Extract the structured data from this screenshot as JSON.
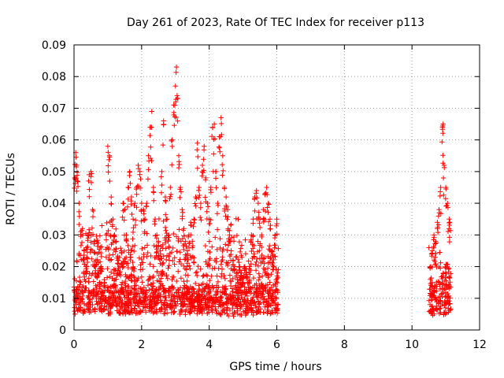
{
  "chart_data": {
    "type": "scatter",
    "title": "Day 261 of 2023, Rate Of TEC Index for receiver p113",
    "xlabel": "GPS time / hours",
    "ylabel": "ROTI / TECUs",
    "xlim": [
      0,
      12
    ],
    "ylim": [
      0,
      0.09
    ],
    "x_ticks": [
      0,
      2,
      4,
      6,
      8,
      10,
      12
    ],
    "y_ticks": [
      0,
      0.01,
      0.02,
      0.03,
      0.04,
      0.05,
      0.06,
      0.07,
      0.08,
      0.09
    ],
    "x_tick_labels": [
      "0",
      "2",
      "4",
      "6",
      "8",
      "10",
      "12"
    ],
    "y_tick_labels": [
      "0",
      "0.01",
      "0.02",
      "0.03",
      "0.04",
      "0.05",
      "0.06",
      "0.07",
      "0.08",
      "0.09"
    ],
    "grid": true,
    "marker": "plus",
    "color": "#ff0000",
    "series": [
      {
        "name": "ROTI",
        "segments": [
          {
            "x_start": 0.0,
            "x_end": 6.05
          },
          {
            "x_start": 10.5,
            "x_end": 11.15
          }
        ],
        "points": [
          [
            0.02,
            0.048
          ],
          [
            0.05,
            0.056
          ],
          [
            0.08,
            0.052
          ],
          [
            0.1,
            0.047
          ],
          [
            0.15,
            0.04
          ],
          [
            0.2,
            0.031
          ],
          [
            0.25,
            0.032
          ],
          [
            0.3,
            0.025
          ],
          [
            0.35,
            0.02
          ],
          [
            0.4,
            0.03
          ],
          [
            0.45,
            0.049
          ],
          [
            0.5,
            0.05
          ],
          [
            0.55,
            0.038
          ],
          [
            0.6,
            0.028
          ],
          [
            0.65,
            0.022
          ],
          [
            0.7,
            0.018
          ],
          [
            0.75,
            0.015
          ],
          [
            0.8,
            0.02
          ],
          [
            0.85,
            0.012
          ],
          [
            0.9,
            0.015
          ],
          [
            0.95,
            0.03
          ],
          [
            1.0,
            0.058
          ],
          [
            1.05,
            0.055
          ],
          [
            1.1,
            0.042
          ],
          [
            1.15,
            0.035
          ],
          [
            1.2,
            0.03
          ],
          [
            1.25,
            0.028
          ],
          [
            1.3,
            0.022
          ],
          [
            1.35,
            0.02
          ],
          [
            1.4,
            0.025
          ],
          [
            1.45,
            0.04
          ],
          [
            1.5,
            0.038
          ],
          [
            1.55,
            0.03
          ],
          [
            1.6,
            0.045
          ],
          [
            1.65,
            0.05
          ],
          [
            1.7,
            0.042
          ],
          [
            1.75,
            0.035
          ],
          [
            1.8,
            0.04
          ],
          [
            1.85,
            0.045
          ],
          [
            1.9,
            0.052
          ],
          [
            1.95,
            0.05
          ],
          [
            2.0,
            0.04
          ],
          [
            2.05,
            0.038
          ],
          [
            2.1,
            0.035
          ],
          [
            2.15,
            0.04
          ],
          [
            2.2,
            0.055
          ],
          [
            2.25,
            0.064
          ],
          [
            2.3,
            0.069
          ],
          [
            2.35,
            0.045
          ],
          [
            2.4,
            0.035
          ],
          [
            2.45,
            0.03
          ],
          [
            2.5,
            0.028
          ],
          [
            2.55,
            0.025
          ],
          [
            2.6,
            0.05
          ],
          [
            2.65,
            0.066
          ],
          [
            2.7,
            0.042
          ],
          [
            2.75,
            0.035
          ],
          [
            2.8,
            0.03
          ],
          [
            2.85,
            0.045
          ],
          [
            2.9,
            0.06
          ],
          [
            2.95,
            0.071
          ],
          [
            3.0,
            0.077
          ],
          [
            3.03,
            0.083
          ],
          [
            3.05,
            0.074
          ],
          [
            3.1,
            0.055
          ],
          [
            3.15,
            0.045
          ],
          [
            3.2,
            0.038
          ],
          [
            3.25,
            0.032
          ],
          [
            3.3,
            0.028
          ],
          [
            3.35,
            0.025
          ],
          [
            3.4,
            0.03
          ],
          [
            3.45,
            0.034
          ],
          [
            3.5,
            0.028
          ],
          [
            3.55,
            0.035
          ],
          [
            3.6,
            0.042
          ],
          [
            3.65,
            0.059
          ],
          [
            3.7,
            0.045
          ],
          [
            3.75,
            0.04
          ],
          [
            3.8,
            0.052
          ],
          [
            3.85,
            0.058
          ],
          [
            3.9,
            0.048
          ],
          [
            3.95,
            0.04
          ],
          [
            4.0,
            0.035
          ],
          [
            4.05,
            0.045
          ],
          [
            4.1,
            0.064
          ],
          [
            4.15,
            0.065
          ],
          [
            4.2,
            0.05
          ],
          [
            4.25,
            0.04
          ],
          [
            4.3,
            0.061
          ],
          [
            4.35,
            0.067
          ],
          [
            4.4,
            0.055
          ],
          [
            4.45,
            0.045
          ],
          [
            4.5,
            0.042
          ],
          [
            4.55,
            0.038
          ],
          [
            4.6,
            0.03
          ],
          [
            4.65,
            0.025
          ],
          [
            4.7,
            0.022
          ],
          [
            4.75,
            0.02
          ],
          [
            4.8,
            0.018
          ],
          [
            4.85,
            0.015
          ],
          [
            4.9,
            0.02
          ],
          [
            4.95,
            0.018
          ],
          [
            5.0,
            0.015
          ],
          [
            5.05,
            0.02
          ],
          [
            5.1,
            0.018
          ],
          [
            5.15,
            0.015
          ],
          [
            5.2,
            0.02
          ],
          [
            5.25,
            0.03
          ],
          [
            5.3,
            0.035
          ],
          [
            5.35,
            0.042
          ],
          [
            5.4,
            0.044
          ],
          [
            5.45,
            0.04
          ],
          [
            5.5,
            0.035
          ],
          [
            5.55,
            0.03
          ],
          [
            5.6,
            0.038
          ],
          [
            5.65,
            0.043
          ],
          [
            5.7,
            0.045
          ],
          [
            5.75,
            0.04
          ],
          [
            5.8,
            0.035
          ],
          [
            5.85,
            0.025
          ],
          [
            5.9,
            0.02
          ],
          [
            5.95,
            0.03
          ],
          [
            6.0,
            0.035
          ],
          [
            6.02,
            0.018
          ],
          [
            10.55,
            0.02
          ],
          [
            10.6,
            0.025
          ],
          [
            10.65,
            0.03
          ],
          [
            10.7,
            0.028
          ],
          [
            10.75,
            0.034
          ],
          [
            10.8,
            0.038
          ],
          [
            10.85,
            0.045
          ],
          [
            10.9,
            0.064
          ],
          [
            10.92,
            0.065
          ],
          [
            10.95,
            0.052
          ],
          [
            11.0,
            0.045
          ],
          [
            11.05,
            0.04
          ],
          [
            11.1,
            0.035
          ],
          [
            11.12,
            0.034
          ]
        ]
      }
    ]
  }
}
